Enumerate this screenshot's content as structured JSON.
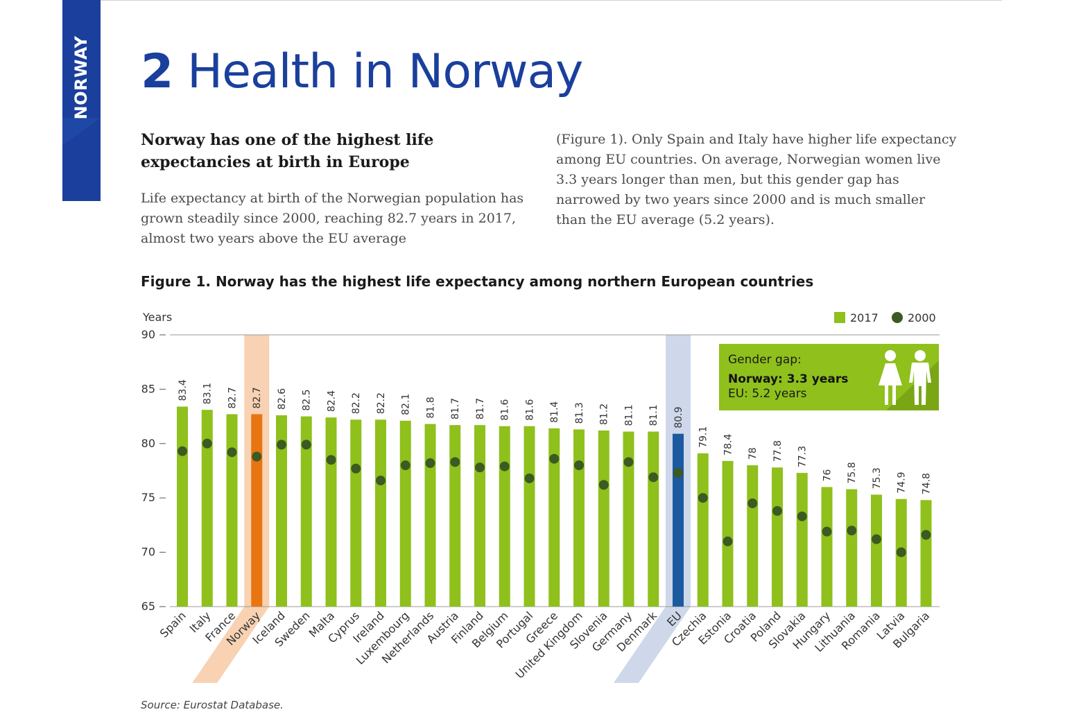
{
  "sidebar": {
    "label": "NORWAY"
  },
  "header": {
    "section_number": "2",
    "title": "Health in Norway"
  },
  "section": {
    "subheading": "Norway has one of the highest life expectancies at birth in Europe",
    "paragraph_1": "Life expectancy at birth of the Norwegian population has grown steadily since 2000, reaching 82.7 years in 2017, almost two years above the EU average",
    "paragraph_2": "(Figure 1). Only Spain and Italy have higher life expectancy among EU countries. On average, Norwegian women live 3.3 years longer than men, but this gender gap has narrowed by two years since 2000 and is much smaller than the EU average (5.2 years)."
  },
  "figure": {
    "title": "Figure 1. Norway has the highest life expectancy among northern European countries",
    "source": "Source: Eurostat Database."
  },
  "gender_gap": {
    "heading": "Gender gap:",
    "norway": "Norway: 3.3 years",
    "eu": "EU: 5.2 years",
    "icon": "female-male-person-icon"
  },
  "colors": {
    "bar_2017": "#8fc01c",
    "dot_2000": "#3c5a22",
    "norway_bar": "#e87511",
    "norway_highlight": "#f8d2b2",
    "eu_bar": "#1c5aa0",
    "eu_highlight": "#ced8ea",
    "title_blue": "#1a3f9c",
    "gap_box": "#8fc01c"
  },
  "chart_data": {
    "type": "bar",
    "title": "Figure 1. Norway has the highest life expectancy among northern European countries",
    "ylabel": "Years",
    "ylim": [
      65,
      90
    ],
    "yticks": [
      65,
      70,
      75,
      80,
      85,
      90
    ],
    "legend_position": "top-right",
    "highlighted": [
      "Norway",
      "EU"
    ],
    "categories": [
      "Spain",
      "Italy",
      "France",
      "Norway",
      "Iceland",
      "Sweden",
      "Malta",
      "Cyprus",
      "Ireland",
      "Luxembourg",
      "Netherlands",
      "Austria",
      "Finland",
      "Belgium",
      "Portugal",
      "Greece",
      "United Kingdom",
      "Slovenia",
      "Germany",
      "Denmark",
      "EU",
      "Czechia",
      "Estonia",
      "Croatia",
      "Poland",
      "Slovakia",
      "Hungary",
      "Lithuania",
      "Romania",
      "Latvia",
      "Bulgaria"
    ],
    "series": [
      {
        "name": "2017",
        "type": "bar",
        "values": [
          83.4,
          83.1,
          82.7,
          82.7,
          82.6,
          82.5,
          82.4,
          82.2,
          82.2,
          82.1,
          81.8,
          81.7,
          81.7,
          81.6,
          81.6,
          81.4,
          81.3,
          81.2,
          81.1,
          81.1,
          80.9,
          79.1,
          78.4,
          78,
          77.8,
          77.3,
          76,
          75.8,
          75.3,
          74.9,
          74.8
        ],
        "labels": [
          "83.4",
          "83.1",
          "82.7",
          "82.7",
          "82.6",
          "82.5",
          "82.4",
          "82.2",
          "82.2",
          "82.1",
          "81.8",
          "81.7",
          "81.7",
          "81.6",
          "81.6",
          "81.4",
          "81.3",
          "81.2",
          "81.1",
          "81.1",
          "80.9",
          "79.1",
          "78.4",
          "78",
          "77.8",
          "77.3",
          "76",
          "75.8",
          "75.3",
          "74.9",
          "74.8"
        ]
      },
      {
        "name": "2000",
        "type": "scatter",
        "values": [
          79.3,
          80.0,
          79.2,
          78.8,
          79.9,
          79.9,
          78.5,
          77.7,
          76.6,
          78.0,
          78.2,
          78.3,
          77.8,
          77.9,
          76.8,
          78.6,
          78.0,
          76.2,
          78.3,
          76.9,
          77.3,
          75.0,
          71.0,
          74.5,
          73.8,
          73.3,
          71.9,
          72.0,
          71.2,
          70.0,
          71.6
        ]
      }
    ]
  }
}
